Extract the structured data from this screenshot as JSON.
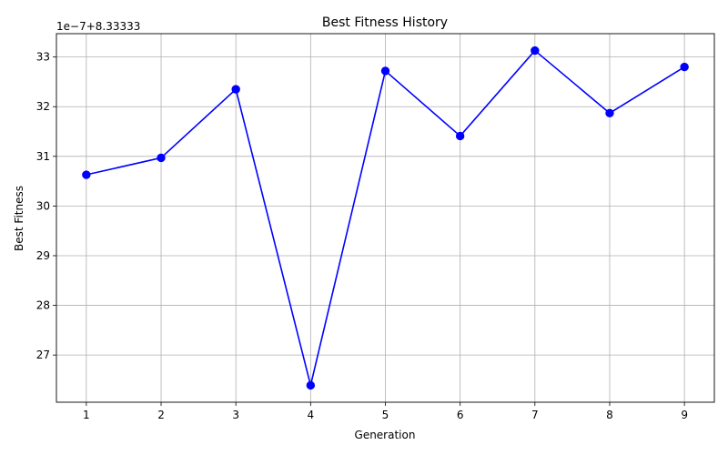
{
  "chart_data": {
    "type": "line",
    "title": "Best Fitness History",
    "xlabel": "Generation",
    "ylabel": "Best Fitness",
    "y_offset_label": "1e−7+8.33333",
    "x": [
      1,
      2,
      3,
      4,
      5,
      6,
      7,
      8,
      9
    ],
    "series": [
      {
        "values": [
          30.63,
          30.97,
          32.35,
          26.39,
          32.72,
          31.41,
          33.13,
          31.87,
          32.8
        ],
        "color": "#0000ff",
        "marker": "circle"
      }
    ],
    "xlim": [
      0.6,
      9.4
    ],
    "ylim": [
      26.05,
      33.47
    ],
    "x_ticks": [
      "1",
      "2",
      "3",
      "4",
      "5",
      "6",
      "7",
      "8",
      "9"
    ],
    "y_ticks": [
      "27",
      "28",
      "29",
      "30",
      "31",
      "32",
      "33"
    ],
    "grid": true
  }
}
